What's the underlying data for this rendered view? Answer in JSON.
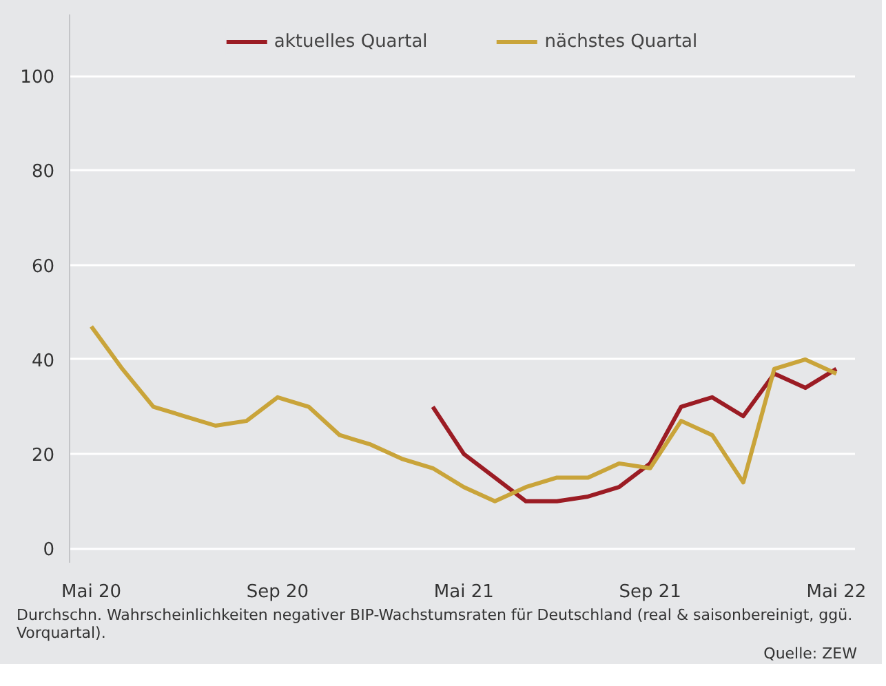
{
  "chart_data": {
    "type": "line",
    "categories": [
      "Mai 20",
      null,
      null,
      null,
      null,
      null,
      "Sep 20",
      null,
      null,
      null,
      null,
      null,
      "Mai 21",
      null,
      null,
      null,
      null,
      null,
      "Sep 21",
      null,
      null,
      null,
      null,
      null,
      "Mai 22"
    ],
    "series": [
      {
        "name": "aktuelles Quartal",
        "color": "#9b1c24",
        "values": [
          null,
          null,
          null,
          null,
          null,
          null,
          null,
          null,
          null,
          null,
          null,
          30,
          20,
          15,
          10,
          10,
          11,
          13,
          18,
          30,
          32,
          28,
          37,
          34,
          38
        ]
      },
      {
        "name": "nächstes Quartal",
        "color": "#c9a43a",
        "values": [
          47,
          38,
          30,
          28,
          26,
          27,
          32,
          30,
          24,
          22,
          19,
          17,
          13,
          10,
          13,
          15,
          15,
          18,
          17,
          27,
          24,
          14,
          38,
          40,
          37
        ]
      }
    ],
    "ylim": [
      -3,
      113
    ],
    "yticks": [
      0,
      20,
      40,
      60,
      80,
      100
    ],
    "grid": "y",
    "legend": "top",
    "annotations": [
      "Durchschn. Wahrscheinlichkeiten negativer BIP-Wachstumsraten für Deutschland (real & saisonbereinigt, ggü. Vorquartal).",
      "Quelle: ZEW"
    ]
  }
}
